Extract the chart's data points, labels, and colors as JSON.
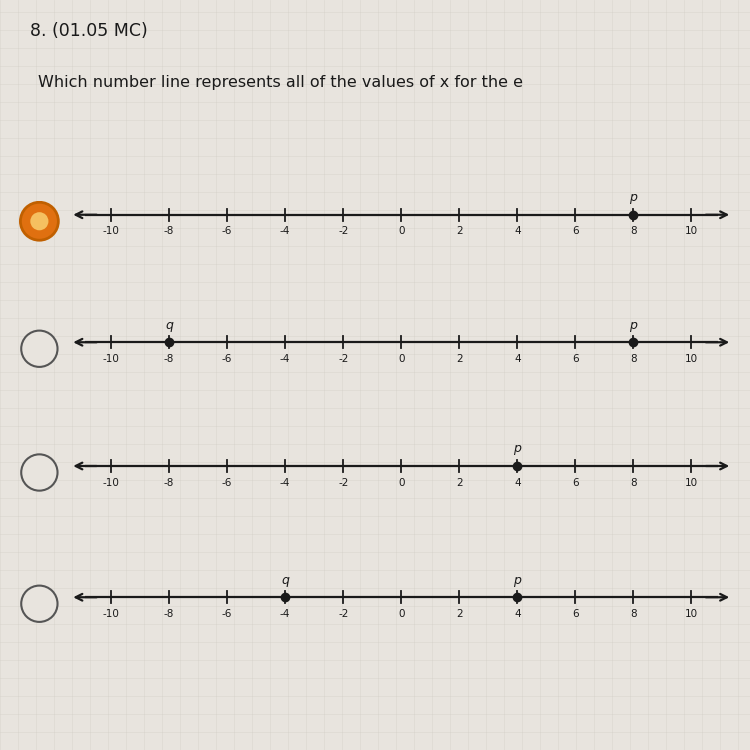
{
  "title_line1": "8. (01.05 MC)",
  "title_line2": "Which number line represents all of the values of x for the e",
  "background_color": "#e8e4de",
  "grid_color": "#d0ccc4",
  "number_lines": [
    {
      "id": 1,
      "selected": true,
      "points": [
        {
          "label": "p",
          "x": 8
        }
      ]
    },
    {
      "id": 2,
      "selected": false,
      "points": [
        {
          "label": "q",
          "x": -8
        },
        {
          "label": "p",
          "x": 8
        }
      ]
    },
    {
      "id": 3,
      "selected": false,
      "points": [
        {
          "label": "p",
          "x": 4
        }
      ]
    },
    {
      "id": 4,
      "selected": false,
      "points": [
        {
          "label": "q",
          "x": -4
        },
        {
          "label": "p",
          "x": 4
        }
      ]
    }
  ],
  "xmin": -11.5,
  "xmax": 11.5,
  "tick_positions": [
    -10,
    -8,
    -6,
    -4,
    -2,
    0,
    2,
    4,
    6,
    8,
    10
  ],
  "tick_labels": [
    "-10",
    "-8",
    "-6",
    "-4",
    "-2",
    "0",
    "2",
    "4",
    "6",
    "8",
    "10"
  ],
  "line_color": "#1a1a1a",
  "point_color": "#1a1a1a",
  "label_color": "#1a1a1a",
  "text_color": "#1a1a1a",
  "radio_selected_outer": "#e07010",
  "radio_selected_inner": "#f5c060",
  "radio_selected_edge": "#c06000",
  "radio_unselected_edge": "#555555"
}
